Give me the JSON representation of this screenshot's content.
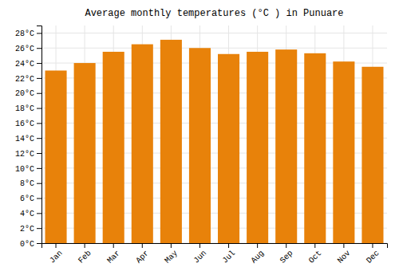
{
  "chart_data": {
    "type": "bar",
    "title": "Average monthly temperatures (°C ) in Punuare",
    "categories": [
      "Jan",
      "Feb",
      "Mar",
      "Apr",
      "May",
      "Jun",
      "Jul",
      "Aug",
      "Sep",
      "Oct",
      "Nov",
      "Dec"
    ],
    "values": [
      23.0,
      24.0,
      25.5,
      26.5,
      27.1,
      26.0,
      25.2,
      25.5,
      25.8,
      25.3,
      24.2,
      23.5
    ],
    "color": "#E8820A",
    "ylim": [
      0,
      29
    ],
    "yticks": [
      {
        "value": 0,
        "label": "0°C"
      },
      {
        "value": 2,
        "label": "2°C"
      },
      {
        "value": 4,
        "label": "4°C"
      },
      {
        "value": 6,
        "label": "6°C"
      },
      {
        "value": 8,
        "label": "8°C"
      },
      {
        "value": 10,
        "label": "10°C"
      },
      {
        "value": 12,
        "label": "12°C"
      },
      {
        "value": 14,
        "label": "14°C"
      },
      {
        "value": 16,
        "label": "16°C"
      },
      {
        "value": 18,
        "label": "18°C"
      },
      {
        "value": 20,
        "label": "20°C"
      },
      {
        "value": 22,
        "label": "22°C"
      },
      {
        "value": 24,
        "label": "24°C"
      },
      {
        "value": 26,
        "label": "26°C"
      },
      {
        "value": 28,
        "label": "28°C"
      }
    ],
    "grid": true
  }
}
